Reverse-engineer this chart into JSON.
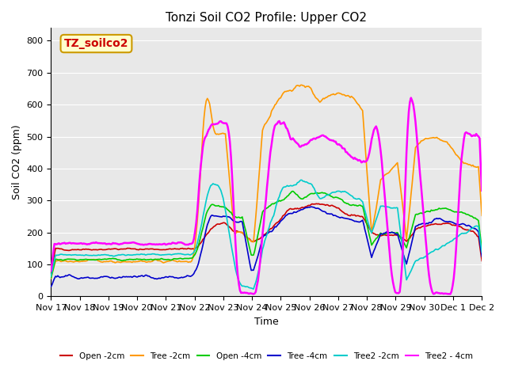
{
  "title": "Tonzi Soil CO2 Profile: Upper CO2",
  "ylabel": "Soil CO2 (ppm)",
  "xlabel": "Time",
  "watermark": "TZ_soilco2",
  "ylim": [
    0,
    840
  ],
  "yticks": [
    0,
    100,
    200,
    300,
    400,
    500,
    600,
    700,
    800
  ],
  "background_color": "#e8e8e8",
  "series": {
    "Open-2cm": {
      "color": "#cc0000",
      "lw": 1.2
    },
    "Tree-2cm": {
      "color": "#ff9900",
      "lw": 1.2
    },
    "Open-4cm": {
      "color": "#00cc00",
      "lw": 1.2
    },
    "Tree-4cm": {
      "color": "#0000cc",
      "lw": 1.2
    },
    "Tree2-2cm": {
      "color": "#00cccc",
      "lw": 1.2
    },
    "Tree2-4cm": {
      "color": "#ff00ff",
      "lw": 1.8
    }
  },
  "legend": [
    {
      "label": "Open -2cm",
      "color": "#cc0000"
    },
    {
      "label": "Tree -2cm",
      "color": "#ff9900"
    },
    {
      "label": "Open -4cm",
      "color": "#00cc00"
    },
    {
      "label": "Tree -4cm",
      "color": "#0000cc"
    },
    {
      "label": "Tree2 -2cm",
      "color": "#00cccc"
    },
    {
      "label": "Tree2 - 4cm",
      "color": "#ff00ff"
    }
  ],
  "n_points": 384,
  "day_labels": [
    "Nov 17",
    "Nov 18",
    "Nov 19",
    "Nov 20",
    "Nov 21",
    "Nov 22",
    "Nov 23",
    "Nov 24",
    "Nov 25",
    "Nov 26",
    "Nov 27",
    "Nov 28",
    "Nov 29",
    "Nov 30",
    "Dec 1",
    "Dec 2"
  ],
  "tick_positions": [
    0,
    1,
    2,
    3,
    4,
    5,
    6,
    7,
    8,
    9,
    10,
    11,
    12,
    13,
    14,
    15
  ]
}
